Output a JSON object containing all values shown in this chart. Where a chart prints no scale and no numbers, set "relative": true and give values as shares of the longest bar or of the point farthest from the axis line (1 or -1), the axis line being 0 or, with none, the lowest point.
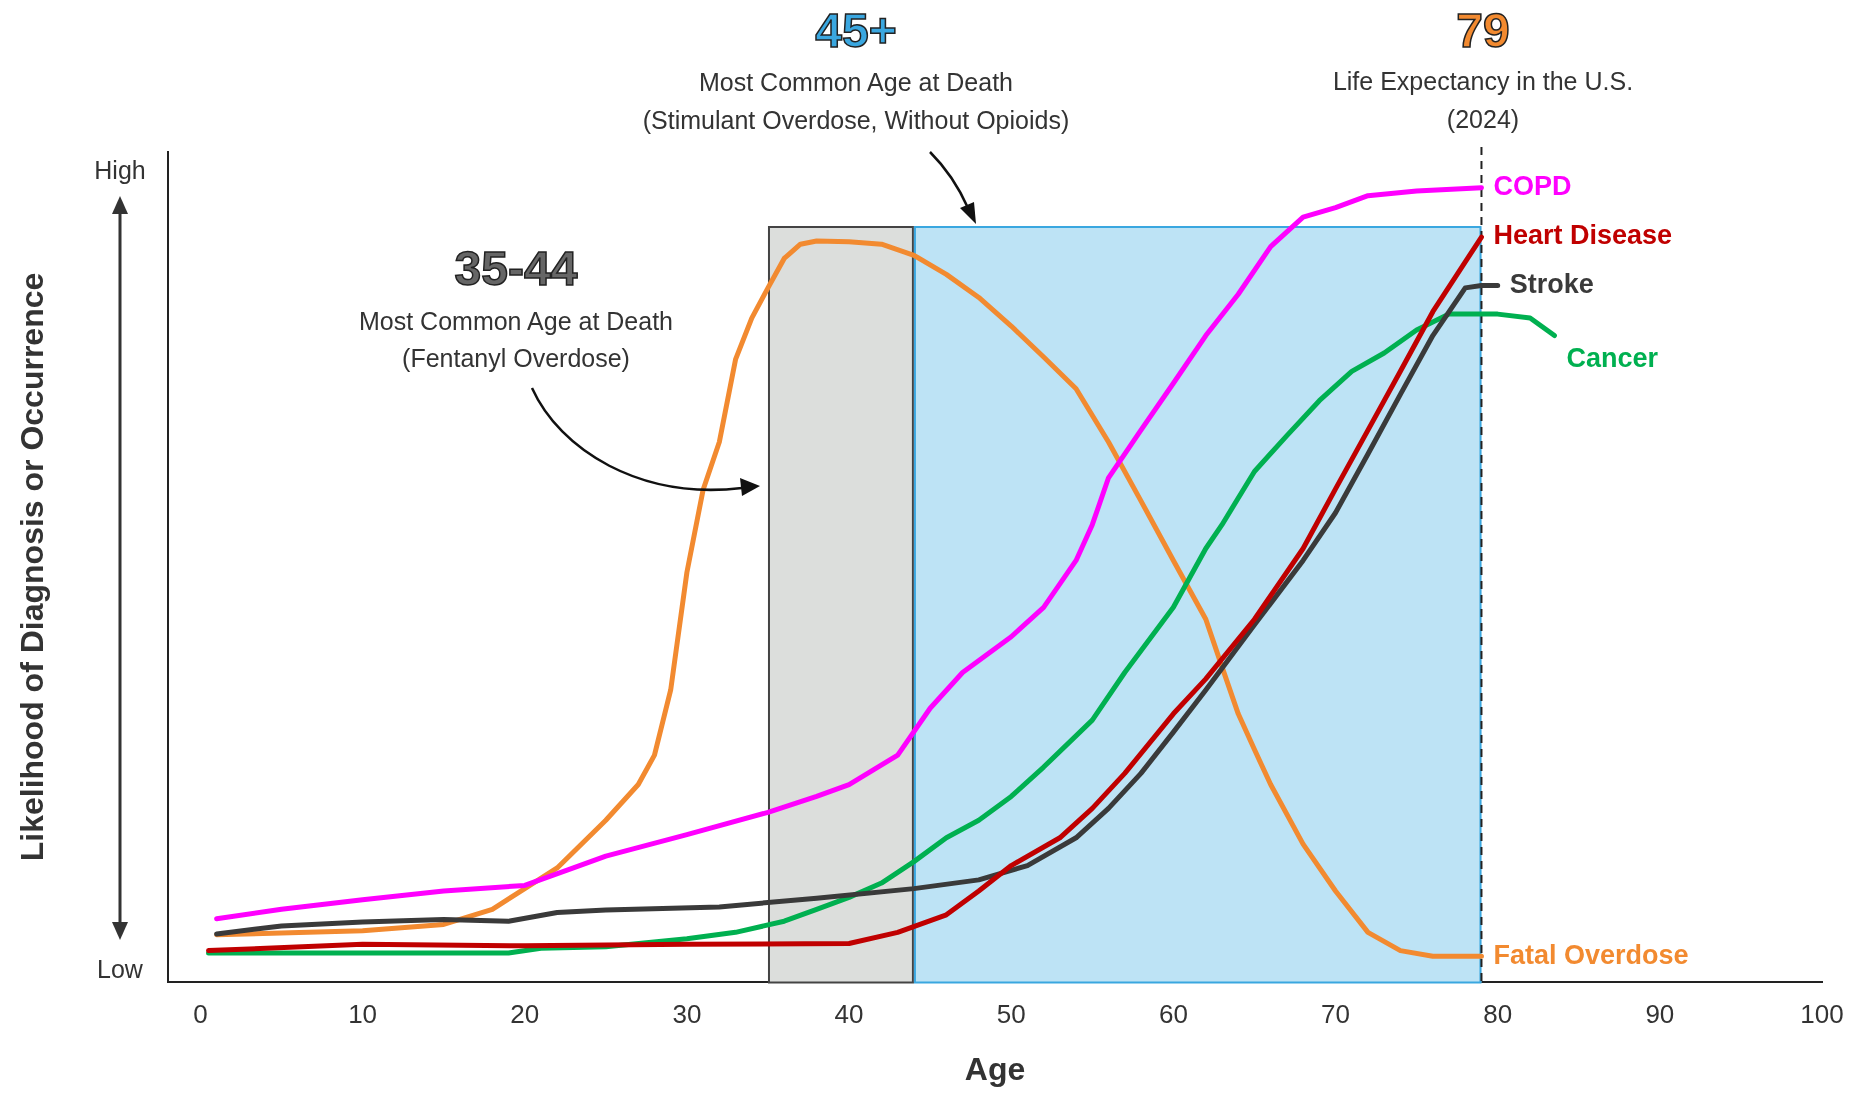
{
  "chart_data": {
    "type": "line",
    "xlabel": "Age",
    "ylabel": "Likelihood of Diagnosis or Occurrence",
    "relative": true,
    "xlim": [
      -2,
      100
    ],
    "xticks": [
      0,
      10,
      20,
      30,
      40,
      50,
      60,
      70,
      80,
      90,
      100
    ],
    "grid": false,
    "legend": false,
    "marker": "none",
    "line_style": "solid",
    "series": [
      {
        "name": "COPD",
        "color": "#ff00ff",
        "x": [
          1,
          5,
          10,
          15,
          20,
          23,
          25,
          30,
          35,
          38,
          40,
          43,
          45,
          47,
          50,
          52,
          54,
          55,
          56,
          58,
          60,
          62,
          64,
          66,
          68,
          70,
          72,
          75,
          79
        ],
        "values": [
          0.08,
          0.092,
          0.104,
          0.115,
          0.122,
          0.144,
          0.159,
          0.186,
          0.214,
          0.234,
          0.249,
          0.286,
          0.345,
          0.39,
          0.435,
          0.472,
          0.531,
          0.576,
          0.635,
          0.695,
          0.754,
          0.814,
          0.866,
          0.926,
          0.963,
          0.975,
          0.99,
          0.996,
          1
        ]
      },
      {
        "name": "Heart Disease",
        "color": "#c00000",
        "x": [
          0.5,
          10,
          20,
          30,
          40,
          43,
          46,
          48,
          50,
          53,
          55,
          57,
          60,
          62,
          65,
          68,
          70,
          72,
          74,
          76,
          79
        ],
        "values": [
          0.04,
          0.048,
          0.046,
          0.048,
          0.049,
          0.063,
          0.085,
          0.115,
          0.147,
          0.182,
          0.219,
          0.263,
          0.338,
          0.382,
          0.457,
          0.546,
          0.621,
          0.695,
          0.769,
          0.844,
          0.938
        ]
      },
      {
        "name": "Stroke",
        "color": "#3a3a3a",
        "x": [
          1,
          5,
          10,
          15,
          19,
          22,
          25,
          32,
          38,
          44,
          48,
          51,
          54,
          56,
          58,
          60,
          62,
          65,
          68,
          70,
          72,
          74,
          76,
          78,
          79,
          80
        ],
        "values": [
          0.061,
          0.071,
          0.076,
          0.079,
          0.077,
          0.088,
          0.091,
          0.095,
          0.106,
          0.118,
          0.129,
          0.147,
          0.182,
          0.219,
          0.263,
          0.315,
          0.368,
          0.45,
          0.531,
          0.591,
          0.665,
          0.74,
          0.814,
          0.874,
          0.877,
          0.877
        ]
      },
      {
        "name": "Cancer",
        "color": "#00b050",
        "x": [
          0.5,
          10,
          19,
          21,
          25,
          30,
          33,
          36,
          38,
          40,
          42,
          44,
          46,
          48,
          50,
          52,
          55,
          57,
          60,
          62,
          63,
          65,
          67,
          69,
          71,
          73,
          75,
          77,
          80,
          82,
          83.5
        ],
        "values": [
          0.037,
          0.037,
          0.037,
          0.043,
          0.045,
          0.055,
          0.063,
          0.077,
          0.092,
          0.107,
          0.125,
          0.152,
          0.182,
          0.204,
          0.234,
          0.271,
          0.33,
          0.39,
          0.472,
          0.546,
          0.576,
          0.643,
          0.688,
          0.732,
          0.769,
          0.792,
          0.821,
          0.841,
          0.841,
          0.836,
          0.814
        ]
      },
      {
        "name": "Fatal Overdose",
        "color": "#f28a30",
        "x": [
          1,
          10,
          15,
          18,
          20,
          22,
          25,
          27,
          28,
          29,
          30,
          31,
          32,
          33,
          34,
          35,
          36,
          37,
          38,
          40,
          42,
          44,
          46,
          48,
          50,
          52,
          54,
          56,
          58,
          60,
          62,
          63,
          64,
          65,
          66,
          68,
          70,
          72,
          74,
          76,
          79
        ],
        "values": [
          0.06,
          0.065,
          0.073,
          0.092,
          0.118,
          0.144,
          0.204,
          0.249,
          0.286,
          0.368,
          0.516,
          0.62,
          0.68,
          0.784,
          0.836,
          0.874,
          0.911,
          0.929,
          0.933,
          0.932,
          0.929,
          0.915,
          0.891,
          0.862,
          0.826,
          0.787,
          0.747,
          0.68,
          0.606,
          0.531,
          0.457,
          0.397,
          0.338,
          0.293,
          0.249,
          0.174,
          0.115,
          0.063,
          0.04,
          0.033,
          0.033
        ]
      }
    ],
    "bands": [
      {
        "axis": "x",
        "from": 35,
        "to": 44,
        "color": "#dcdedc"
      },
      {
        "axis": "x",
        "from": 44,
        "to": 79,
        "color": "#bde3f5"
      }
    ],
    "ref_lines": [
      {
        "axis": "x",
        "value": 79,
        "label": "79",
        "line_style": "dashed",
        "color": "#222222"
      }
    ],
    "annotations": [
      "35-44",
      "45+",
      "Most Common Age at Death",
      "(Stimulant Overdose, Without Opioids)",
      "Life Expectancy in the U.S.",
      "(2024)",
      "Most Common Age at Death",
      "(Fentanyl Overdose)",
      "High",
      "Low"
    ]
  }
}
